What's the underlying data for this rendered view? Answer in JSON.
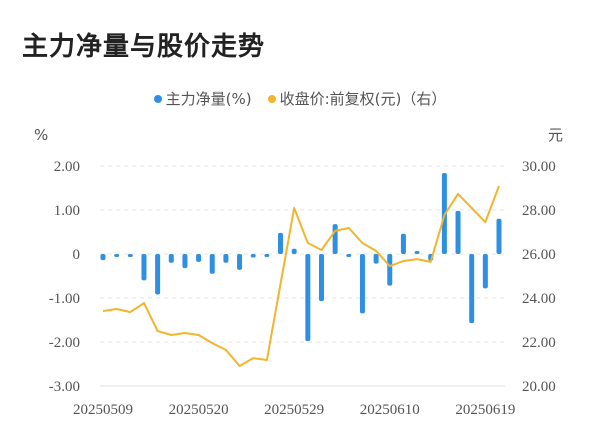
{
  "title": "主力净量与股价走势",
  "legend": [
    {
      "label": "主力净量(%)",
      "color": "#2e8fe3"
    },
    {
      "label": "收盘价:前复权(元)（右）",
      "color": "#f2b52c"
    }
  ],
  "axes": {
    "left_unit": "%",
    "right_unit": "元",
    "left_ticks": [
      "2.00",
      "1.00",
      "0",
      "-1.00",
      "-2.00",
      "-3.00"
    ],
    "right_ticks": [
      "30.00",
      "28.00",
      "26.00",
      "24.00",
      "22.00",
      "20.00"
    ],
    "x_ticks": [
      "20250509",
      "20250520",
      "20250529",
      "20250610",
      "20250619"
    ]
  },
  "chart_data": {
    "type": "bar+line",
    "title": "主力净量与股价走势",
    "xlabel": "",
    "ylabel": "%",
    "ylabel_right": "元",
    "ylim": [
      -3,
      2
    ],
    "ylim_right": [
      20,
      30
    ],
    "grid": true,
    "legend_position": "top",
    "x_tick_labels": [
      "20250509",
      "20250520",
      "20250529",
      "20250610",
      "20250619"
    ],
    "categories": [
      "20250509",
      "20250512",
      "20250513",
      "20250514",
      "20250515",
      "20250516",
      "20250519",
      "20250520",
      "20250521",
      "20250522",
      "20250523",
      "20250526",
      "20250527",
      "20250528",
      "20250529",
      "20250530",
      "20250603",
      "20250604",
      "20250605",
      "20250606",
      "20250609",
      "20250610",
      "20250611",
      "20250612",
      "20250613",
      "20250616",
      "20250617",
      "20250618",
      "20250619",
      "20250620"
    ],
    "series": [
      {
        "name": "主力净量(%)",
        "type": "bar",
        "axis": "left",
        "color": "#2e8fe3",
        "values": [
          -0.14,
          -0.03,
          -0.03,
          -0.6,
          -0.92,
          -0.2,
          -0.32,
          -0.18,
          -0.45,
          -0.2,
          -0.36,
          -0.08,
          -0.06,
          0.48,
          0.12,
          -1.98,
          -1.07,
          0.68,
          -0.05,
          -1.35,
          -0.22,
          -0.72,
          0.46,
          0.03,
          -0.15,
          1.84,
          0.98,
          -1.57,
          -0.78,
          0.8
        ]
      },
      {
        "name": "收盘价:前复权(元)（右）",
        "type": "line",
        "axis": "right",
        "color": "#f2b52c",
        "values": [
          23.41,
          23.5,
          23.36,
          23.77,
          22.5,
          22.32,
          22.41,
          22.32,
          21.95,
          21.64,
          20.91,
          21.27,
          21.18,
          24.64,
          28.09,
          26.5,
          26.18,
          27.05,
          27.18,
          26.5,
          26.14,
          25.45,
          25.68,
          25.77,
          25.64,
          27.77,
          28.73,
          28.09,
          27.45,
          29.09
        ]
      }
    ]
  }
}
